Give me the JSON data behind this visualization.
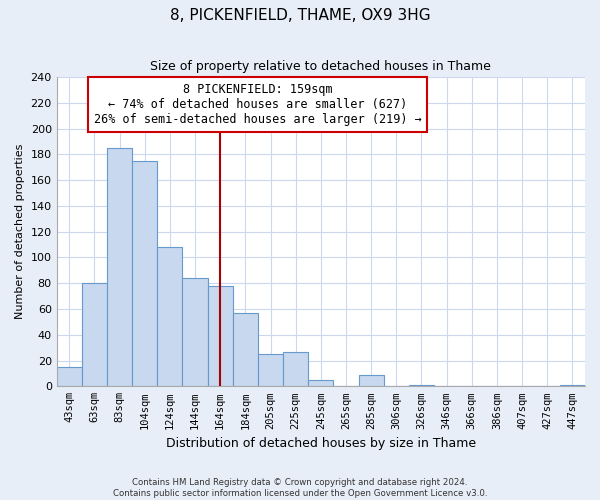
{
  "title": "8, PICKENFIELD, THAME, OX9 3HG",
  "subtitle": "Size of property relative to detached houses in Thame",
  "xlabel": "Distribution of detached houses by size in Thame",
  "ylabel": "Number of detached properties",
  "bar_labels": [
    "43sqm",
    "63sqm",
    "83sqm",
    "104sqm",
    "124sqm",
    "144sqm",
    "164sqm",
    "184sqm",
    "205sqm",
    "225sqm",
    "245sqm",
    "265sqm",
    "285sqm",
    "306sqm",
    "326sqm",
    "346sqm",
    "366sqm",
    "386sqm",
    "407sqm",
    "427sqm",
    "447sqm"
  ],
  "bar_values": [
    15,
    80,
    185,
    175,
    108,
    84,
    78,
    57,
    25,
    27,
    5,
    0,
    9,
    0,
    1,
    0,
    0,
    0,
    0,
    0,
    1
  ],
  "bar_color": "#c8d8ee",
  "bar_edge_color": "#6699cc",
  "ylim": [
    0,
    240
  ],
  "yticks": [
    0,
    20,
    40,
    60,
    80,
    100,
    120,
    140,
    160,
    180,
    200,
    220,
    240
  ],
  "property_label": "8 PICKENFIELD: 159sqm",
  "annotation_line1": "← 74% of detached houses are smaller (627)",
  "annotation_line2": "26% of semi-detached houses are larger (219) →",
  "vline_x": 6.5,
  "vline_color": "#aa0000",
  "annotation_box_color": "#ffffff",
  "annotation_box_edge": "#cc0000",
  "footer_line1": "Contains HM Land Registry data © Crown copyright and database right 2024.",
  "footer_line2": "Contains public sector information licensed under the Open Government Licence v3.0.",
  "plot_bg_color": "#ffffff",
  "fig_bg_color": "#e8eef8",
  "grid_color": "#ccd8ee",
  "title_fontsize": 11,
  "subtitle_fontsize": 9
}
